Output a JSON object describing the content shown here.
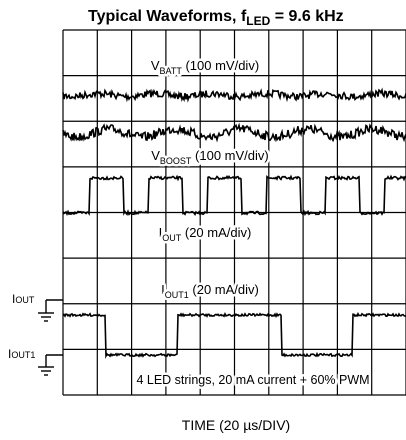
{
  "title": {
    "main": "Typical Waveforms, f",
    "sub": "LED",
    "rest": " = 9.6 kHz"
  },
  "traces": [
    {
      "symbol": "V",
      "sub": "BATT",
      "scale": " (100 mV/div)"
    },
    {
      "symbol": "V",
      "sub": "BOOST",
      "scale": " (100 mV/div)"
    },
    {
      "symbol": "I",
      "sub": "OUT",
      "scale": " (20 mA/div)"
    },
    {
      "symbol": "I",
      "sub": "OUT1",
      "scale": " (20 mA/div)"
    }
  ],
  "markers": [
    {
      "symbol": "I",
      "sub": "OUT"
    },
    {
      "symbol": "I",
      "sub": "OUT1"
    }
  ],
  "note": "4 LED strings, 20 mA current + 60% PWM",
  "x_label": "TIME (20 µs/DIV)"
}
